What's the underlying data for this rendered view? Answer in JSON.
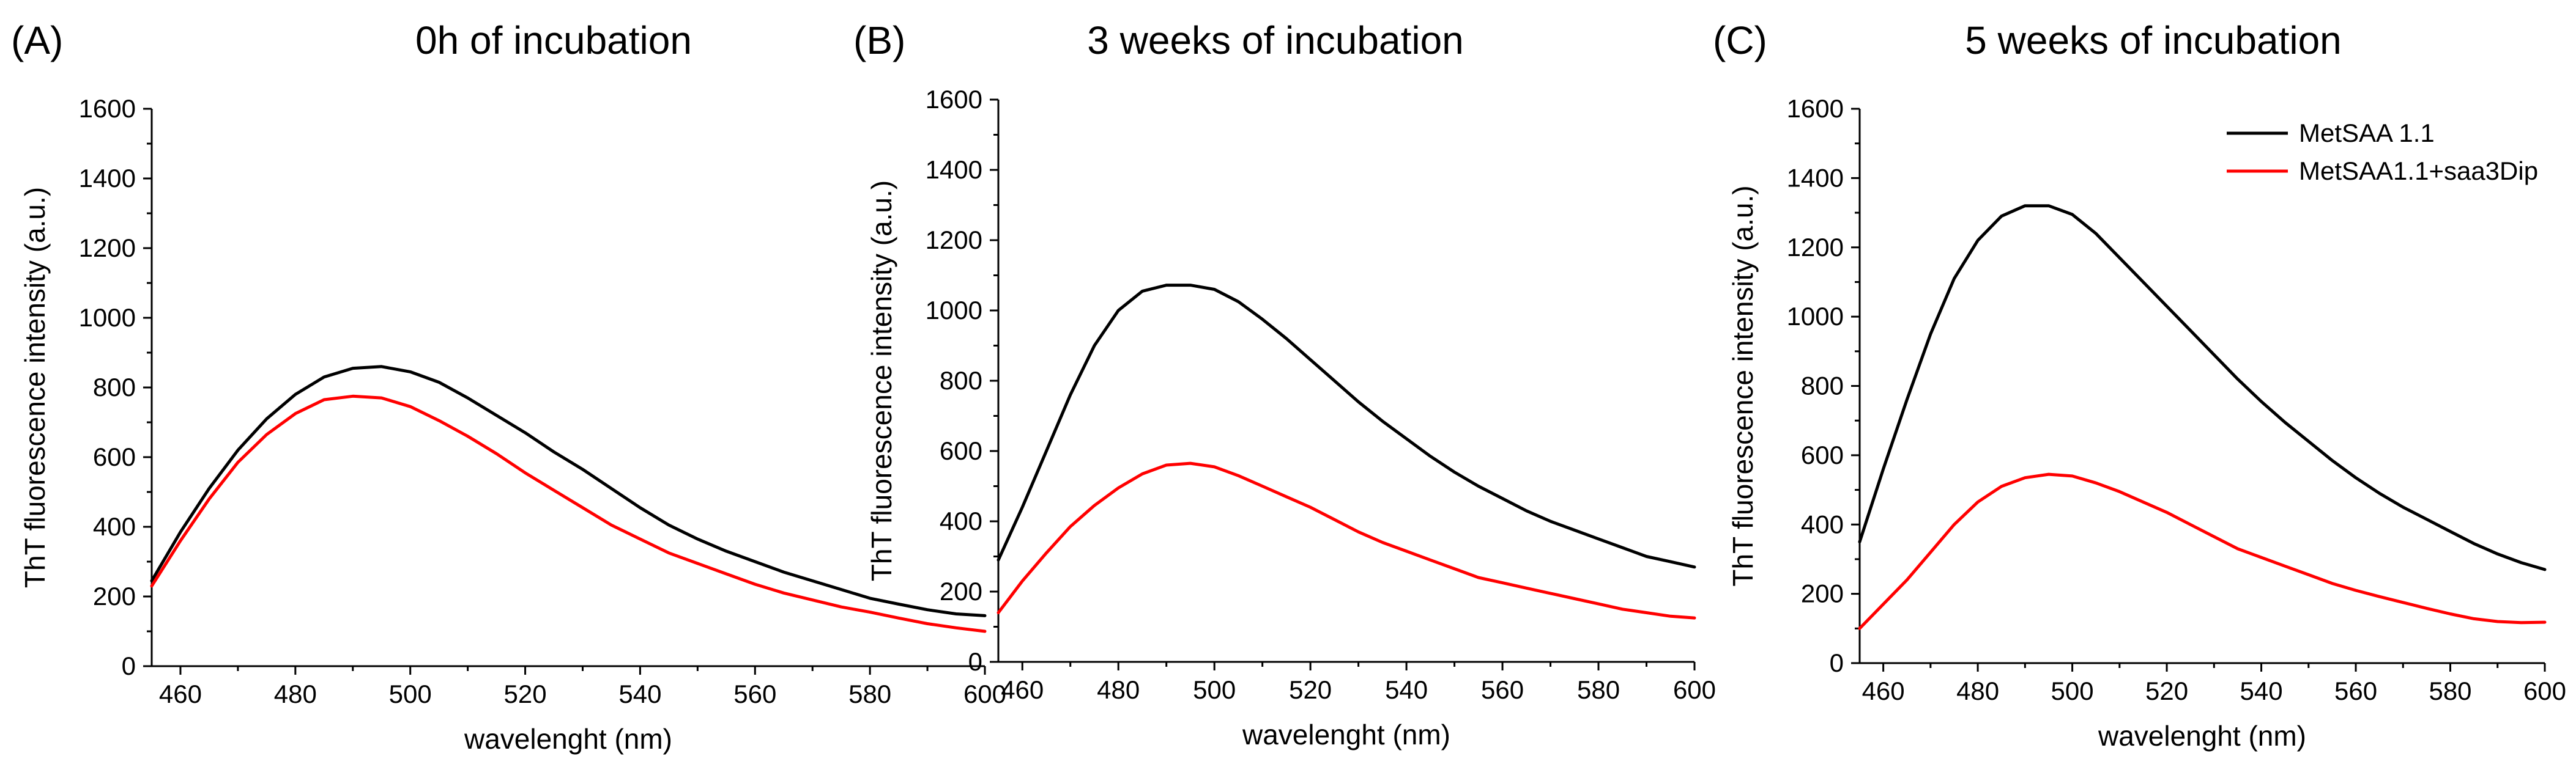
{
  "chart_data": [
    {
      "type": "line",
      "panel_label": "(A)",
      "title": "0h of incubation",
      "xlabel": "wavelenght (nm)",
      "ylabel": "ThT fluorescence intensity (a.u.)",
      "xlim": [
        455,
        600
      ],
      "ylim": [
        0,
        1600
      ],
      "xticks": [
        460,
        480,
        500,
        520,
        540,
        560,
        580,
        600
      ],
      "yticks": [
        0,
        200,
        400,
        600,
        800,
        1000,
        1200,
        1400,
        1600
      ],
      "x": [
        455,
        460,
        465,
        470,
        475,
        480,
        485,
        490,
        495,
        500,
        505,
        510,
        515,
        520,
        525,
        530,
        535,
        540,
        545,
        550,
        555,
        560,
        565,
        570,
        575,
        580,
        585,
        590,
        595,
        600
      ],
      "series": [
        {
          "name": "MetSAA 1.1",
          "color": "#000000",
          "values": [
            245,
            385,
            510,
            620,
            710,
            780,
            830,
            855,
            860,
            845,
            815,
            770,
            720,
            670,
            615,
            565,
            510,
            455,
            405,
            365,
            330,
            300,
            270,
            245,
            220,
            195,
            178,
            162,
            150,
            145
          ]
        },
        {
          "name": "MetSAA1.1+saa3Dip",
          "color": "#ff0000",
          "values": [
            230,
            360,
            480,
            585,
            665,
            725,
            765,
            775,
            770,
            745,
            705,
            660,
            610,
            555,
            505,
            455,
            405,
            365,
            325,
            295,
            265,
            235,
            210,
            190,
            170,
            155,
            138,
            122,
            110,
            100
          ]
        }
      ]
    },
    {
      "type": "line",
      "panel_label": "(B)",
      "title": "3 weeks of incubation",
      "xlabel": "wavelenght (nm)",
      "ylabel": "ThT fluorescence intensity (a.u.)",
      "xlim": [
        455,
        600
      ],
      "ylim": [
        0,
        1600
      ],
      "xticks": [
        460,
        480,
        500,
        520,
        540,
        560,
        580,
        600
      ],
      "yticks": [
        0,
        200,
        400,
        600,
        800,
        1000,
        1200,
        1400,
        1600
      ],
      "x": [
        455,
        460,
        465,
        470,
        475,
        480,
        485,
        490,
        495,
        500,
        505,
        510,
        515,
        520,
        525,
        530,
        535,
        540,
        545,
        550,
        555,
        560,
        565,
        570,
        575,
        580,
        585,
        590,
        595,
        600
      ],
      "series": [
        {
          "name": "MetSAA 1.1",
          "color": "#000000",
          "values": [
            290,
            440,
            600,
            760,
            900,
            1000,
            1055,
            1072,
            1072,
            1060,
            1025,
            975,
            920,
            860,
            800,
            740,
            685,
            635,
            585,
            540,
            500,
            465,
            430,
            400,
            375,
            350,
            325,
            300,
            285,
            270
          ]
        },
        {
          "name": "MetSAA1.1+saa3Dip",
          "color": "#ff0000",
          "values": [
            140,
            230,
            310,
            385,
            445,
            495,
            535,
            560,
            565,
            555,
            530,
            500,
            470,
            440,
            405,
            370,
            340,
            315,
            290,
            265,
            240,
            225,
            210,
            195,
            180,
            165,
            150,
            140,
            130,
            125
          ]
        }
      ]
    },
    {
      "type": "line",
      "panel_label": "(C)",
      "title": "5 weeks of incubation",
      "xlabel": "wavelenght (nm)",
      "ylabel": "ThT fluorescence intensity (a.u.)",
      "xlim": [
        455,
        600
      ],
      "ylim": [
        0,
        1600
      ],
      "xticks": [
        460,
        480,
        500,
        520,
        540,
        560,
        580,
        600
      ],
      "yticks": [
        0,
        200,
        400,
        600,
        800,
        1000,
        1200,
        1400,
        1600
      ],
      "legend": {
        "placement": "top-right",
        "entries": [
          "MetSAA 1.1",
          "MetSAA1.1+saa3Dip"
        ]
      },
      "x": [
        455,
        460,
        465,
        470,
        475,
        480,
        485,
        490,
        495,
        500,
        505,
        510,
        515,
        520,
        525,
        530,
        535,
        540,
        545,
        550,
        555,
        560,
        565,
        570,
        575,
        580,
        585,
        590,
        595,
        600
      ],
      "series": [
        {
          "name": "MetSAA 1.1",
          "color": "#000000",
          "values": [
            350,
            560,
            760,
            950,
            1110,
            1220,
            1290,
            1320,
            1320,
            1295,
            1240,
            1170,
            1100,
            1030,
            960,
            890,
            820,
            755,
            695,
            640,
            585,
            535,
            490,
            450,
            415,
            380,
            345,
            315,
            290,
            270
          ]
        },
        {
          "name": "MetSAA1.1+saa3Dip",
          "color": "#ff0000",
          "values": [
            100,
            170,
            240,
            320,
            400,
            465,
            510,
            535,
            545,
            540,
            520,
            495,
            465,
            435,
            400,
            365,
            330,
            305,
            280,
            255,
            230,
            210,
            192,
            175,
            158,
            142,
            128,
            120,
            117,
            118
          ]
        }
      ]
    }
  ]
}
